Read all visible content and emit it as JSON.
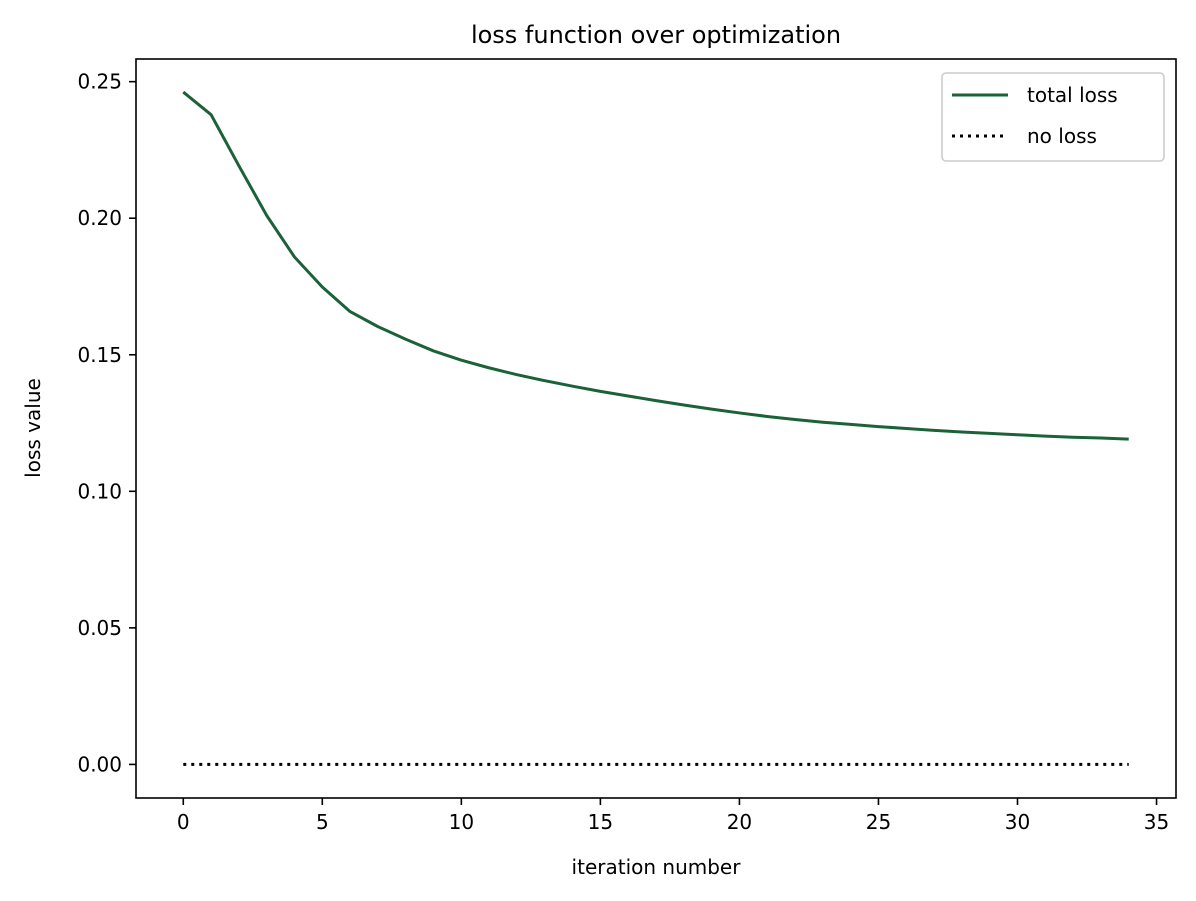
{
  "chart_data": {
    "type": "line",
    "title": "loss function over optimization",
    "xlabel": "iteration number",
    "ylabel": "loss value",
    "xlim": [
      -1.7,
      35.7
    ],
    "ylim": [
      -0.0123,
      0.2583
    ],
    "xticks": [
      0,
      5,
      10,
      15,
      20,
      25,
      30,
      35
    ],
    "xtick_labels": [
      "0",
      "5",
      "10",
      "15",
      "20",
      "25",
      "30",
      "35"
    ],
    "yticks": [
      0.0,
      0.05,
      0.1,
      0.15,
      0.2,
      0.25
    ],
    "ytick_labels": [
      "0.00",
      "0.05",
      "0.10",
      "0.15",
      "0.20",
      "0.25"
    ],
    "grid": false,
    "legend_position": "top-right",
    "series": [
      {
        "name": "total loss",
        "color": "#1b6238",
        "style": "solid",
        "x": [
          0,
          1,
          2,
          3,
          4,
          5,
          6,
          7,
          8,
          9,
          10,
          11,
          12,
          13,
          14,
          15,
          16,
          17,
          18,
          19,
          20,
          21,
          22,
          23,
          24,
          25,
          26,
          27,
          28,
          29,
          30,
          31,
          32,
          33,
          34
        ],
        "y": [
          0.2462,
          0.2379,
          0.2192,
          0.201,
          0.1858,
          0.1748,
          0.1658,
          0.1603,
          0.1557,
          0.1514,
          0.148,
          0.1452,
          0.1427,
          0.1405,
          0.1385,
          0.1366,
          0.1349,
          0.1332,
          0.1316,
          0.1301,
          0.1287,
          0.1274,
          0.1263,
          0.1253,
          0.1245,
          0.1237,
          0.123,
          0.1223,
          0.1217,
          0.1212,
          0.1207,
          0.1202,
          0.1198,
          0.1195,
          0.1191
        ]
      },
      {
        "name": "no loss",
        "color": "#000000",
        "style": "dotted",
        "x": [
          0,
          34
        ],
        "y": [
          0.0,
          0.0
        ]
      }
    ]
  }
}
